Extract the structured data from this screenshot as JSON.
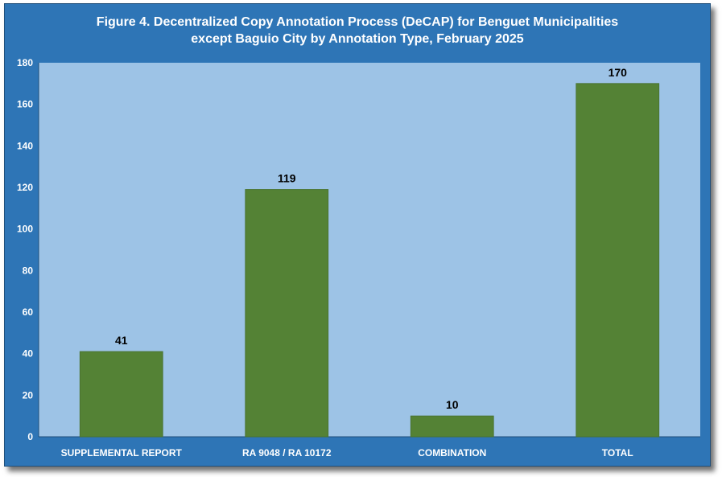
{
  "chart_data": {
    "type": "bar",
    "title_line1": "Figure 4. Decentralized Copy Annotation Process (DeCAP) for Benguet Municipalities",
    "title_line2": "except Baguio City by Annotation Type, February 2025",
    "categories": [
      "SUPPLEMENTAL REPORT",
      "RA 9048 / RA 10172",
      "COMBINATION",
      "TOTAL"
    ],
    "values": [
      41,
      119,
      10,
      170
    ],
    "xlabel": "",
    "ylabel": "",
    "ylim": [
      0,
      180
    ],
    "yticks": [
      0,
      20,
      40,
      60,
      80,
      100,
      120,
      140,
      160,
      180
    ],
    "data_labels": true,
    "legend": "none",
    "grid": false
  },
  "colors": {
    "frame_background": "#2e75b6",
    "plot_background": "#9dc3e6",
    "bar_fill": "#548235",
    "text": "#ffffff",
    "data_label": "#000000"
  }
}
